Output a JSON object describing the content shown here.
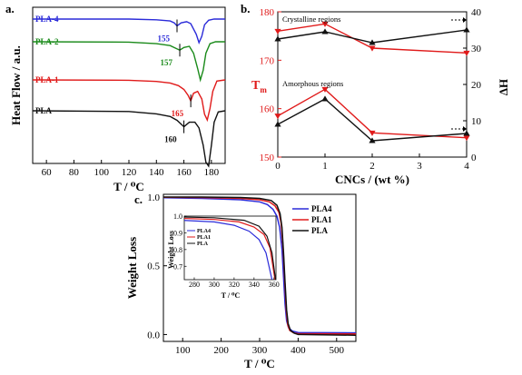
{
  "chart_data": [
    {
      "panel": "a.",
      "type": "line",
      "xlabel": "T / ⁰C",
      "ylabel": "Heat Flow / a.u.",
      "xlim": [
        50,
        190
      ],
      "xticks": [
        "60",
        "80",
        "100",
        "120",
        "140",
        "160",
        "180"
      ],
      "grid": false,
      "series": [
        {
          "name": "PLA-4",
          "color": "#2b2bd9",
          "offset": 3,
          "x": [
            50,
            120,
            140,
            150,
            153,
            155,
            158,
            162,
            165,
            169,
            171,
            173,
            175,
            178,
            182,
            190
          ],
          "y": [
            0,
            0,
            -0.02,
            -0.05,
            -0.1,
            -0.18,
            -0.1,
            -0.07,
            -0.12,
            -0.4,
            -0.62,
            -0.45,
            -0.15,
            -0.03,
            0,
            0
          ],
          "peak_label": "155",
          "peak_x": 155
        },
        {
          "name": "PLA-2",
          "color": "#1a8a1a",
          "offset": 2,
          "x": [
            50,
            120,
            140,
            150,
            154,
            157,
            160,
            164,
            167,
            170,
            172,
            174,
            176,
            179,
            183,
            190
          ],
          "y": [
            0,
            -0.01,
            -0.05,
            -0.1,
            -0.17,
            -0.22,
            -0.15,
            -0.12,
            -0.3,
            -0.7,
            -1.0,
            -0.75,
            -0.3,
            -0.05,
            0,
            0
          ],
          "peak_label": "157",
          "peak_x": 157
        },
        {
          "name": "PLA-1",
          "color": "#e01a1a",
          "offset": 1,
          "x": [
            50,
            120,
            140,
            150,
            156,
            160,
            163,
            165,
            167,
            170,
            173,
            175,
            177,
            179,
            181,
            184,
            190
          ],
          "y": [
            0,
            -0.01,
            -0.04,
            -0.08,
            -0.15,
            -0.25,
            -0.4,
            -0.55,
            -0.35,
            -0.3,
            -0.5,
            -0.9,
            -1.05,
            -0.75,
            -0.3,
            -0.03,
            0
          ],
          "peak_label": "165",
          "peak_x": 165
        },
        {
          "name": "PLA",
          "color": "#111111",
          "offset": 0,
          "x": [
            50,
            120,
            140,
            150,
            155,
            160,
            164,
            168,
            171,
            174,
            176,
            178,
            180,
            182,
            185,
            190
          ],
          "y": [
            0,
            -0.02,
            -0.08,
            -0.15,
            -0.25,
            -0.42,
            -0.3,
            -0.3,
            -0.45,
            -0.9,
            -1.35,
            -1.45,
            -0.9,
            -0.3,
            -0.03,
            0
          ],
          "peak_label": "160",
          "peak_x": 160
        }
      ]
    },
    {
      "panel": "b.",
      "type": "line",
      "xlabel": "CNCs / (wt %)",
      "ylabel_left": "T",
      "ylabel_left_sub": "m",
      "ylabel_right": "ΔH",
      "x": [
        0,
        1,
        2,
        4
      ],
      "xlim": [
        0,
        4
      ],
      "xticks": [
        "0",
        "1",
        "2",
        "3",
        "4"
      ],
      "ylim_left": [
        150,
        180
      ],
      "yticks_left": [
        "150",
        "160",
        "170",
        "180"
      ],
      "ylim_right": [
        0,
        40
      ],
      "yticks_right": [
        "0",
        "10",
        "20",
        "30",
        "40"
      ],
      "annotations": [
        "Crystalline regions",
        "Amorphous regions"
      ],
      "series": [
        {
          "axis": "left",
          "color": "#e01a1a",
          "marker": "triangle-down",
          "region": "crystalline",
          "values": [
            176.0,
            177.5,
            172.5,
            171.5
          ]
        },
        {
          "axis": "right",
          "color": "#111111",
          "marker": "triangle-up",
          "region": "crystalline",
          "values": [
            32.5,
            34.5,
            31.5,
            35.0
          ]
        },
        {
          "axis": "left",
          "color": "#e01a1a",
          "marker": "triangle-down",
          "region": "amorphous",
          "values": [
            158.5,
            164.0,
            155.0,
            154.0
          ]
        },
        {
          "axis": "right",
          "color": "#111111",
          "marker": "triangle-up",
          "region": "amorphous",
          "values": [
            9.0,
            16.0,
            4.5,
            6.5
          ]
        }
      ]
    },
    {
      "panel": "c.",
      "type": "line",
      "xlabel": "T / ⁰C",
      "ylabel": "Weight Loss",
      "xlim": [
        50,
        550
      ],
      "xticks": [
        "100",
        "200",
        "300",
        "400",
        "500"
      ],
      "ylim": [
        -0.05,
        1.0
      ],
      "yticks": [
        "0.0",
        "0.5",
        "1.0"
      ],
      "legend": "top-right",
      "series": [
        {
          "name": "PLA4",
          "color": "#2b2bd9",
          "x": [
            50,
            150,
            250,
            300,
            320,
            335,
            345,
            352,
            358,
            362,
            366,
            370,
            375,
            385,
            400,
            550
          ],
          "y": [
            0.995,
            0.99,
            0.98,
            0.965,
            0.945,
            0.91,
            0.86,
            0.78,
            0.62,
            0.42,
            0.22,
            0.1,
            0.05,
            0.025,
            0.015,
            0.012
          ]
        },
        {
          "name": "PLA1",
          "color": "#e01a1a",
          "x": [
            50,
            150,
            250,
            300,
            325,
            340,
            350,
            356,
            361,
            365,
            369,
            373,
            378,
            388,
            400,
            550
          ],
          "y": [
            0.998,
            0.997,
            0.99,
            0.98,
            0.965,
            0.935,
            0.89,
            0.81,
            0.62,
            0.4,
            0.18,
            0.07,
            0.03,
            0.012,
            0.006,
            0.004
          ]
        },
        {
          "name": "PLA",
          "color": "#111111",
          "x": [
            50,
            150,
            250,
            300,
            330,
            345,
            353,
            358,
            362,
            366,
            370,
            374,
            380,
            390,
            400,
            550
          ],
          "y": [
            1.0,
            1.0,
            0.997,
            0.99,
            0.975,
            0.94,
            0.88,
            0.78,
            0.6,
            0.38,
            0.18,
            0.08,
            0.03,
            0.01,
            0.0,
            -0.005
          ]
        }
      ],
      "inset": {
        "xlabel": "T / ⁰C",
        "ylabel": "Weight Loss",
        "xlim": [
          270,
          362
        ],
        "xticks": [
          "280",
          "300",
          "320",
          "340",
          "360"
        ],
        "ylim": [
          0.62,
          1.0
        ],
        "yticks": [
          "0.7",
          "0.8",
          "0.9",
          "1.0"
        ],
        "legend": "top-left"
      }
    }
  ]
}
